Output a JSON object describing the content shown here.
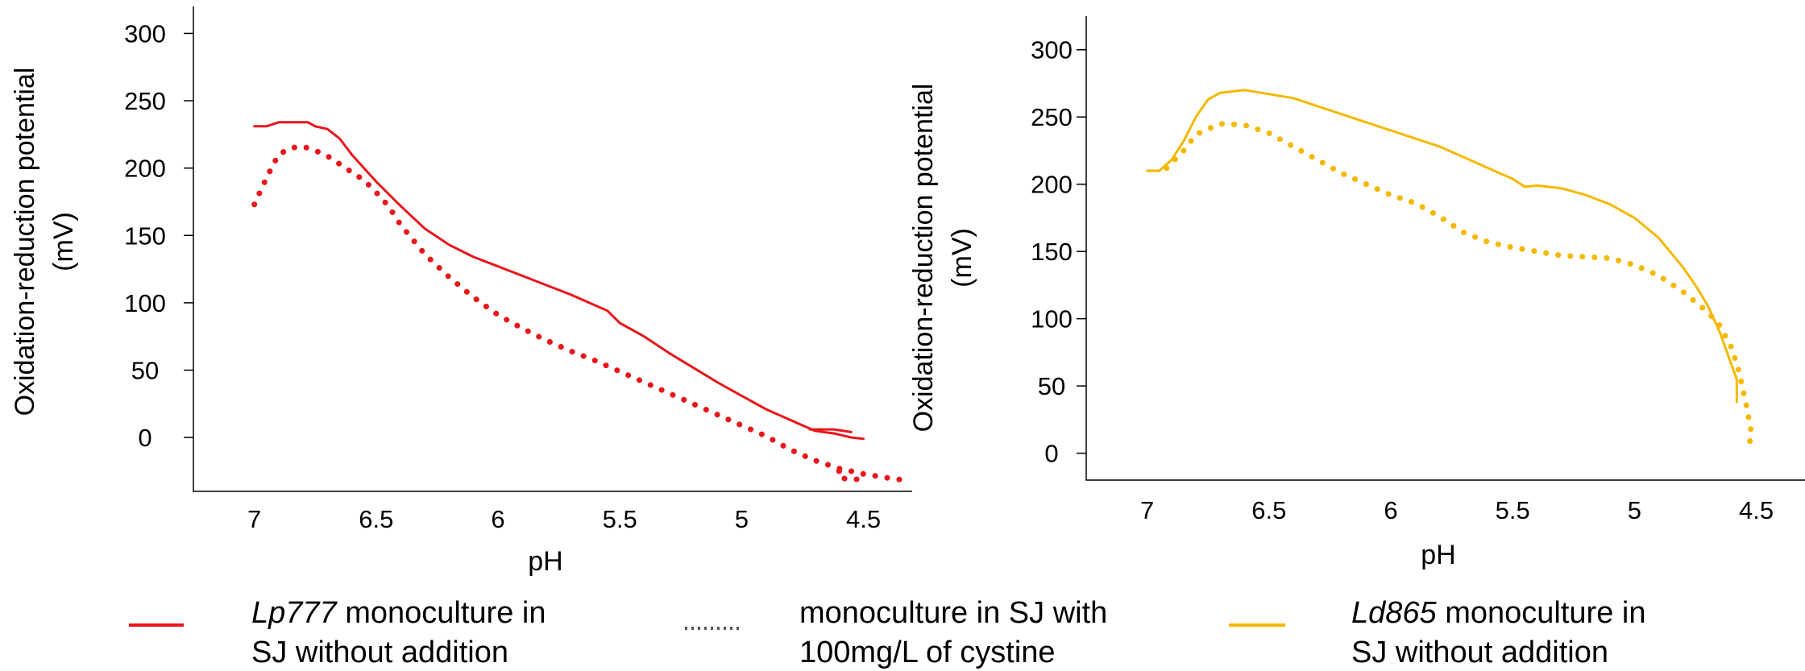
{
  "chart_data": [
    {
      "type": "line",
      "xlabel": "pH",
      "ylabel": "Oxidation-reduction potential (mV)",
      "ylabel_lines": [
        "Oxidation-reduction  potential",
        "(mV)"
      ],
      "xlim": [
        7.25,
        4.3
      ],
      "ylim": [
        -40,
        320
      ],
      "xticks": [
        7,
        6.5,
        6,
        5.5,
        5,
        4.5
      ],
      "xtick_labels": [
        "7",
        "6.5",
        "6",
        "5.5",
        "5",
        "4.5"
      ],
      "yticks": [
        0,
        50,
        100,
        150,
        200,
        250,
        300
      ],
      "ytick_labels": [
        "0",
        "50",
        "100",
        "150",
        "200",
        "250",
        "300"
      ],
      "series": [
        {
          "style": "solid",
          "color": "#e8161b",
          "points": [
            [
              7.0,
              231
            ],
            [
              6.95,
              231
            ],
            [
              6.9,
              234
            ],
            [
              6.85,
              234
            ],
            [
              6.78,
              234
            ],
            [
              6.75,
              231
            ],
            [
              6.7,
              229
            ],
            [
              6.65,
              222
            ],
            [
              6.6,
              210
            ],
            [
              6.5,
              190
            ],
            [
              6.4,
              172
            ],
            [
              6.3,
              155
            ],
            [
              6.2,
              143
            ],
            [
              6.1,
              134
            ],
            [
              6.0,
              127
            ],
            [
              5.9,
              120
            ],
            [
              5.8,
              113
            ],
            [
              5.7,
              106
            ],
            [
              5.6,
              98
            ],
            [
              5.55,
              94
            ],
            [
              5.5,
              85
            ],
            [
              5.4,
              75
            ],
            [
              5.3,
              63
            ],
            [
              5.2,
              52
            ],
            [
              5.1,
              41
            ],
            [
              5.0,
              31
            ],
            [
              4.9,
              21
            ],
            [
              4.8,
              13
            ],
            [
              4.7,
              5
            ],
            [
              4.62,
              3
            ],
            [
              4.55,
              0
            ],
            [
              4.5,
              -1
            ]
          ]
        },
        {
          "style": "solid",
          "color": "#e8161b",
          "points": [
            [
              4.72,
              6
            ],
            [
              4.62,
              6
            ],
            [
              4.55,
              4
            ]
          ]
        },
        {
          "style": "dotted",
          "color": "#e8161b",
          "points": [
            [
              7.0,
              173
            ],
            [
              6.97,
              185
            ],
            [
              6.93,
              200
            ],
            [
              6.9,
              210
            ],
            [
              6.85,
              215
            ],
            [
              6.8,
              216
            ],
            [
              6.75,
              213
            ],
            [
              6.7,
              209
            ],
            [
              6.65,
              203
            ],
            [
              6.6,
              197
            ],
            [
              6.55,
              191
            ],
            [
              6.5,
              182
            ],
            [
              6.45,
              172
            ],
            [
              6.4,
              158
            ],
            [
              6.3,
              136
            ],
            [
              6.2,
              119
            ],
            [
              6.1,
              104
            ],
            [
              6.0,
              91
            ],
            [
              5.9,
              81
            ],
            [
              5.8,
              72
            ],
            [
              5.7,
              64
            ],
            [
              5.6,
              57
            ],
            [
              5.5,
              49
            ],
            [
              5.4,
              41
            ],
            [
              5.3,
              33
            ],
            [
              5.2,
              25
            ],
            [
              5.1,
              17
            ],
            [
              5.0,
              9
            ],
            [
              4.9,
              1
            ],
            [
              4.8,
              -9
            ],
            [
              4.7,
              -17
            ],
            [
              4.6,
              -23
            ],
            [
              4.5,
              -27
            ],
            [
              4.4,
              -30
            ],
            [
              4.32,
              -32
            ]
          ]
        },
        {
          "style": "dotted",
          "color": "#e8161b",
          "points": [
            [
              4.6,
              -25
            ],
            [
              4.6,
              -30
            ],
            [
              4.55,
              -31
            ],
            [
              4.5,
              -31
            ]
          ]
        }
      ]
    },
    {
      "type": "line",
      "xlabel": "pH",
      "ylabel": "Oxidation-reduction potential (mV)",
      "ylabel_lines": [
        "Oxidation-reduction  potential",
        "(mV)"
      ],
      "xlim": [
        7.25,
        4.3
      ],
      "ylim": [
        -20,
        325
      ],
      "xticks": [
        7,
        6.5,
        6,
        5.5,
        5,
        4.5
      ],
      "xtick_labels": [
        "7",
        "6.5",
        "6",
        "5.5",
        "5",
        "4.5"
      ],
      "yticks": [
        0,
        50,
        100,
        150,
        200,
        250,
        300
      ],
      "ytick_labels": [
        "0",
        "50",
        "100",
        "150",
        "200",
        "250",
        "300"
      ],
      "series": [
        {
          "style": "solid",
          "color": "#f5b800",
          "points": [
            [
              7.0,
              210
            ],
            [
              6.95,
              210
            ],
            [
              6.9,
              218
            ],
            [
              6.85,
              232
            ],
            [
              6.8,
              250
            ],
            [
              6.75,
              263
            ],
            [
              6.7,
              268
            ],
            [
              6.6,
              270
            ],
            [
              6.5,
              267
            ],
            [
              6.4,
              264
            ],
            [
              6.3,
              258
            ],
            [
              6.2,
              252
            ],
            [
              6.1,
              246
            ],
            [
              6.0,
              240
            ],
            [
              5.9,
              234
            ],
            [
              5.8,
              228
            ],
            [
              5.7,
              220
            ],
            [
              5.6,
              212
            ],
            [
              5.5,
              204
            ],
            [
              5.45,
              198
            ],
            [
              5.4,
              199
            ],
            [
              5.3,
              197
            ],
            [
              5.2,
              192
            ],
            [
              5.1,
              185
            ],
            [
              5.0,
              175
            ],
            [
              4.9,
              160
            ],
            [
              4.8,
              138
            ],
            [
              4.75,
              125
            ],
            [
              4.7,
              110
            ],
            [
              4.65,
              90
            ],
            [
              4.6,
              65
            ],
            [
              4.58,
              55
            ],
            [
              4.58,
              38
            ]
          ]
        },
        {
          "style": "dotted",
          "color": "#f5b800",
          "points": [
            [
              6.92,
              212
            ],
            [
              6.85,
              225
            ],
            [
              6.8,
              237
            ],
            [
              6.7,
              245
            ],
            [
              6.6,
              244
            ],
            [
              6.5,
              238
            ],
            [
              6.4,
              228
            ],
            [
              6.3,
              218
            ],
            [
              6.2,
              208
            ],
            [
              6.1,
              200
            ],
            [
              6.0,
              192
            ],
            [
              5.9,
              186
            ],
            [
              5.8,
              176
            ],
            [
              5.7,
              164
            ],
            [
              5.6,
              157
            ],
            [
              5.5,
              153
            ],
            [
              5.4,
              150
            ],
            [
              5.3,
              147
            ],
            [
              5.2,
              146
            ],
            [
              5.1,
              145
            ],
            [
              5.0,
              140
            ],
            [
              4.9,
              132
            ],
            [
              4.8,
              120
            ],
            [
              4.7,
              105
            ],
            [
              4.65,
              95
            ],
            [
              4.6,
              78
            ],
            [
              4.57,
              60
            ],
            [
              4.54,
              35
            ],
            [
              4.52,
              15
            ],
            [
              4.53,
              5
            ]
          ]
        }
      ]
    }
  ],
  "legend": [
    {
      "lines": [
        "Lp777 monoculture in",
        "SJ without addition"
      ],
      "italic_prefix": "Lp777",
      "style": "solid",
      "color": "#e8161b"
    },
    {
      "lines": [
        "monoculture in SJ with",
        "100mg/L of cystine"
      ],
      "italic_prefix": "",
      "style": "dotted",
      "color": "#555555"
    },
    {
      "lines": [
        "Ld865 monoculture in",
        "SJ without addition"
      ],
      "italic_prefix": "Ld865",
      "style": "solid",
      "color": "#f5b800"
    }
  ]
}
